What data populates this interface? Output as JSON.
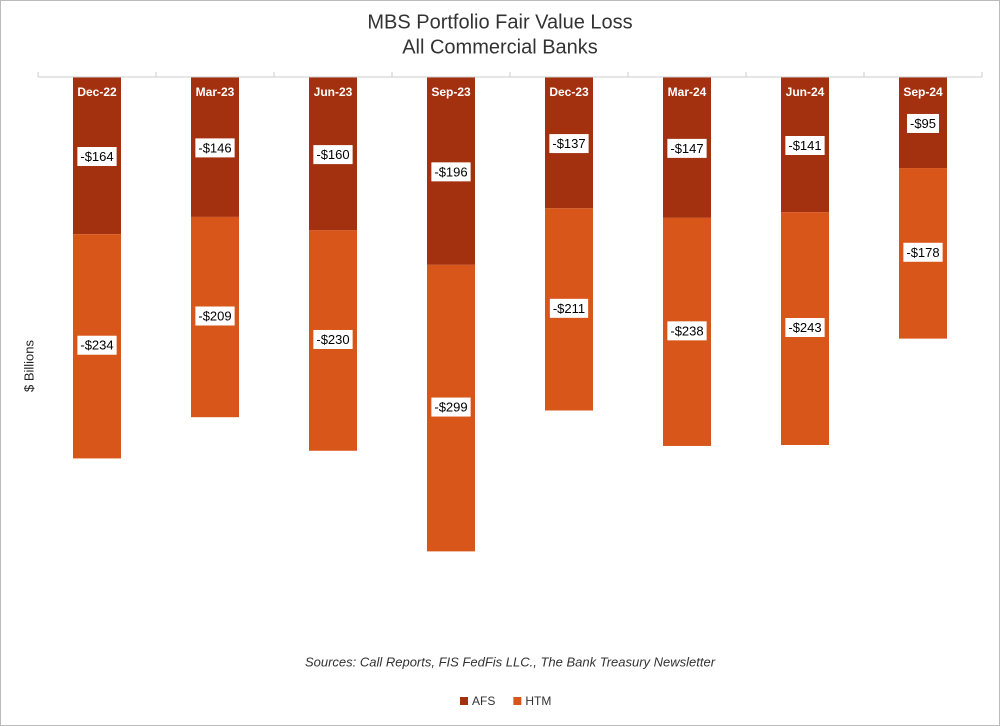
{
  "chart_data": {
    "type": "stacked-bar",
    "title": "MBS Portfolio Fair Value Loss",
    "subtitle": "All Commercial Banks",
    "y_label": "$ Billions",
    "note": "Sources: Call Reports, FIS FedFis LLC., The Bank Treasury Newsletter",
    "categories": [
      "Dec-22",
      "Mar-23",
      "Jun-23",
      "Sep-23",
      "Dec-23",
      "Mar-24",
      "Jun-24",
      "Sep-24"
    ],
    "series": [
      {
        "name": "AFS",
        "color": "#a3300f",
        "values": [
          -164,
          -146,
          -160,
          -196,
          -137,
          -147,
          -141,
          -95
        ],
        "value_labels": [
          "-$164",
          "-$146",
          "-$160",
          "-$196",
          "-$137",
          "-$147",
          "-$141",
          "-$95"
        ]
      },
      {
        "name": "HTM",
        "color": "#d9561a",
        "values": [
          -234,
          -209,
          -230,
          -299,
          -211,
          -238,
          -243,
          -178
        ],
        "value_labels": [
          "-$234",
          "-$209",
          "-$230",
          "-$299",
          "-$211",
          "-$238",
          "-$243",
          "-$178"
        ]
      }
    ],
    "ylim": [
      -600,
      0
    ],
    "legend": "bottom"
  }
}
